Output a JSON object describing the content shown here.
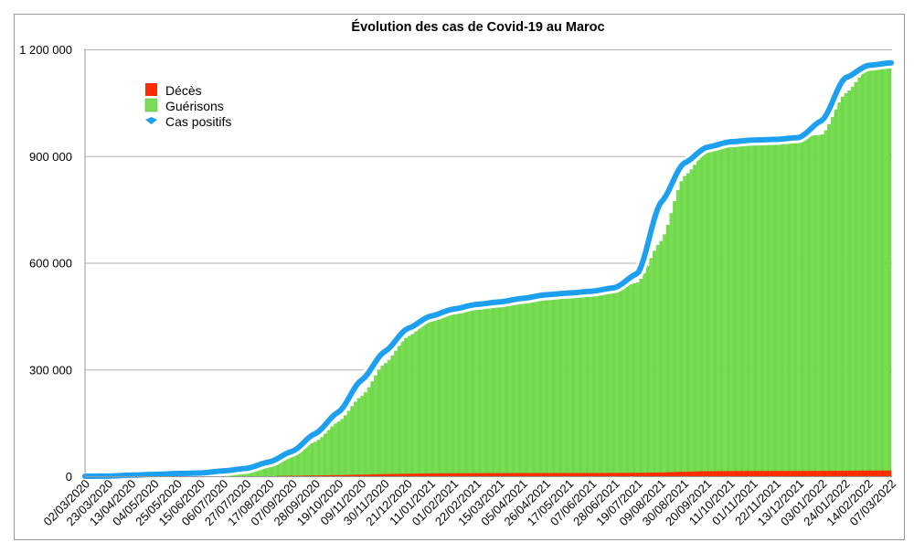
{
  "chart_data": {
    "type": "bar+line",
    "title": "Évolution des cas de Covid-19 au Maroc",
    "xlabel": "",
    "ylabel": "",
    "ylim": [
      0,
      1200000
    ],
    "yticks": [
      0,
      300000,
      600000,
      900000,
      1200000
    ],
    "ytick_labels": [
      "0",
      "300 000",
      "600 000",
      "900 000",
      "1 200 000"
    ],
    "grid": true,
    "legend_position": "top-left",
    "categories": [
      "02/03/2020",
      "23/03/2020",
      "13/04/2020",
      "04/05/2020",
      "25/05/2020",
      "15/06/2020",
      "06/07/2020",
      "27/07/2020",
      "17/08/2020",
      "07/09/2020",
      "28/09/2020",
      "19/10/2020",
      "09/11/2020",
      "30/11/2020",
      "21/12/2020",
      "11/01/2021",
      "01/02/2021",
      "22/02/2021",
      "15/03/2021",
      "05/04/2021",
      "26/04/2021",
      "17/05/2021",
      "07/06/2021",
      "28/06/2021",
      "19/07/2021",
      "09/08/2021",
      "30/08/2021",
      "20/09/2021",
      "11/10/2021",
      "01/11/2021",
      "22/11/2021",
      "13/12/2021",
      "03/01/2022",
      "24/01/2022",
      "14/02/2022",
      "07/03/2022"
    ],
    "series": [
      {
        "name": "Décès",
        "kind": "bar",
        "color": "#ff2a00",
        "values": [
          0,
          0,
          100,
          190,
          200,
          210,
          240,
          330,
          600,
          1200,
          2100,
          3100,
          4500,
          6000,
          7000,
          8000,
          8300,
          8500,
          8700,
          8900,
          9000,
          9100,
          9150,
          9300,
          9600,
          10500,
          12500,
          14100,
          14600,
          14800,
          14900,
          14900,
          15000,
          15500,
          16000,
          16050
        ]
      },
      {
        "name": "Guérisons",
        "kind": "bar",
        "color": "#6fd94a",
        "values": [
          0,
          0,
          0,
          1000,
          4000,
          6000,
          10000,
          17000,
          30000,
          55000,
          95000,
          150000,
          220000,
          310000,
          385000,
          430000,
          455000,
          470000,
          480000,
          488000,
          495000,
          502000,
          508000,
          515000,
          535000,
          650000,
          830000,
          900000,
          922000,
          930000,
          935000,
          938000,
          945000,
          1060000,
          1130000,
          1145000
        ]
      },
      {
        "name": "Cas positifs",
        "kind": "line",
        "color": "#1ea0f0",
        "values": [
          0,
          300,
          3000,
          5000,
          7500,
          9000,
          15000,
          22000,
          40000,
          70000,
          120000,
          180000,
          270000,
          350000,
          415000,
          450000,
          470000,
          483000,
          490000,
          500000,
          510000,
          515000,
          520000,
          530000,
          570000,
          770000,
          880000,
          925000,
          940000,
          945000,
          947000,
          952000,
          1000000,
          1120000,
          1155000,
          1162000
        ]
      }
    ]
  }
}
